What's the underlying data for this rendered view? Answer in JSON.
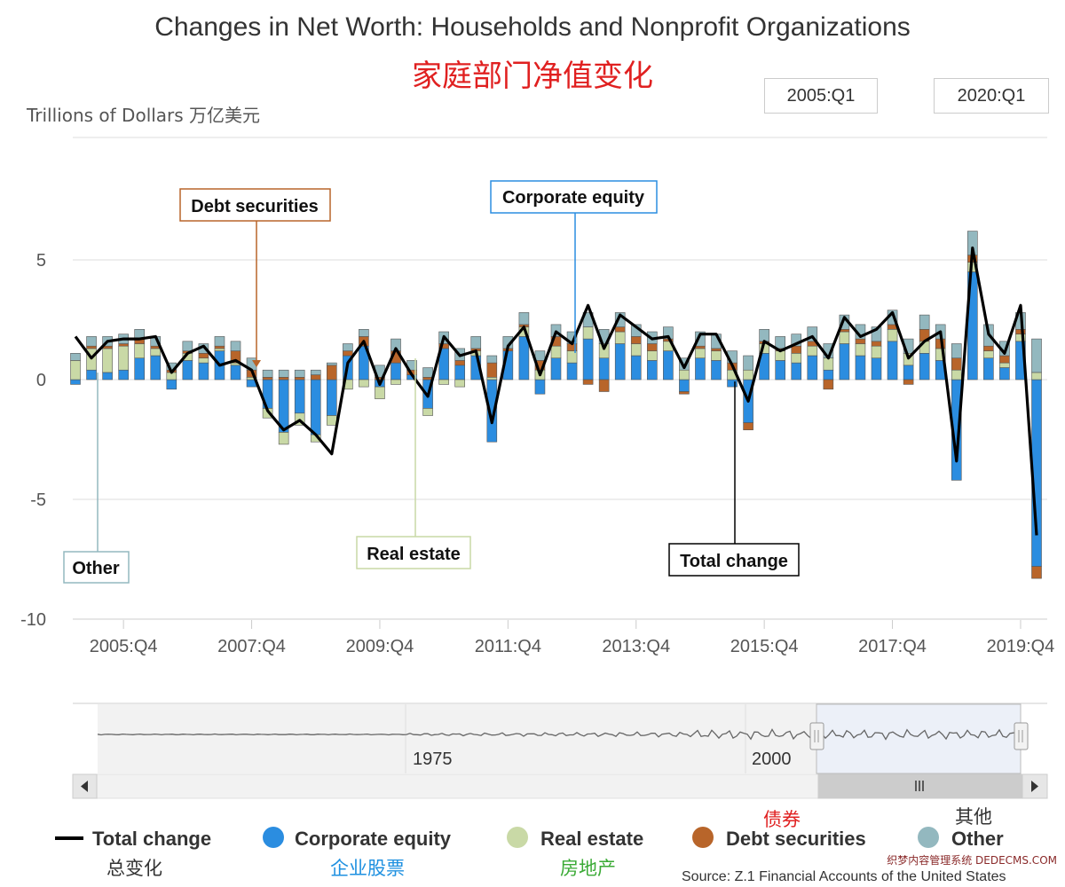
{
  "title": "Changes in Net Worth: Households and Nonprofit Organizations",
  "subtitle_cn": "家庭部门净值变化",
  "y_unit": "Trillions of Dollars 万亿美元",
  "range": {
    "start": "2005:Q1",
    "end": "2020:Q1"
  },
  "navigator": {
    "labels": [
      "1975",
      "2000"
    ]
  },
  "source": "Source: Z.1 Financial Accounts of the United States",
  "watermark": "织梦内容管理系统 DEDECMS.COM",
  "callouts": {
    "debt": "Debt securities",
    "equity": "Corporate equity",
    "other": "Other",
    "realestate": "Real estate",
    "total": "Total change"
  },
  "legend": [
    {
      "key": "total",
      "label": "Total change",
      "cn": "总变化",
      "cn_color": "#333333"
    },
    {
      "key": "equity",
      "label": "Corporate equity",
      "cn": "企业股票",
      "cn_color": "#1e90e0"
    },
    {
      "key": "realestate",
      "label": "Real estate",
      "cn": "房地产",
      "cn_color": "#3aaa35"
    },
    {
      "key": "debt",
      "label": "Debt securities",
      "cn": "债券",
      "cn_color": "#e02020"
    },
    {
      "key": "other",
      "label": "Other",
      "cn": "其他",
      "cn_color": "#333333"
    }
  ],
  "colors": {
    "equity": "#2b8de0",
    "realestate": "#c9d9a6",
    "debt": "#b8652a",
    "other": "#93b8bf",
    "total": "#000000",
    "grid": "#dddddd"
  },
  "chart_data": {
    "type": "bar",
    "stacked": true,
    "title": "Changes in Net Worth: Households and Nonprofit Organizations",
    "ylabel": "Trillions of Dollars",
    "ylim": [
      -10,
      10
    ],
    "yticks": [
      5,
      0,
      -5,
      -10
    ],
    "xticks": [
      "2005:Q4",
      "2007:Q4",
      "2009:Q4",
      "2011:Q4",
      "2013:Q4",
      "2015:Q4",
      "2017:Q4",
      "2019:Q4"
    ],
    "x_start": "2005:Q1",
    "x_end": "2020:Q1",
    "grid": true,
    "legend_position": "bottom",
    "categories": [
      "2005:Q1",
      "2005:Q2",
      "2005:Q3",
      "2005:Q4",
      "2006:Q1",
      "2006:Q2",
      "2006:Q3",
      "2006:Q4",
      "2007:Q1",
      "2007:Q2",
      "2007:Q3",
      "2007:Q4",
      "2008:Q1",
      "2008:Q2",
      "2008:Q3",
      "2008:Q4",
      "2009:Q1",
      "2009:Q2",
      "2009:Q3",
      "2009:Q4",
      "2010:Q1",
      "2010:Q2",
      "2010:Q3",
      "2010:Q4",
      "2011:Q1",
      "2011:Q2",
      "2011:Q3",
      "2011:Q4",
      "2012:Q1",
      "2012:Q2",
      "2012:Q3",
      "2012:Q4",
      "2013:Q1",
      "2013:Q2",
      "2013:Q3",
      "2013:Q4",
      "2014:Q1",
      "2014:Q2",
      "2014:Q3",
      "2014:Q4",
      "2015:Q1",
      "2015:Q2",
      "2015:Q3",
      "2015:Q4",
      "2016:Q1",
      "2016:Q2",
      "2016:Q3",
      "2016:Q4",
      "2017:Q1",
      "2017:Q2",
      "2017:Q3",
      "2017:Q4",
      "2018:Q1",
      "2018:Q2",
      "2018:Q3",
      "2018:Q4",
      "2019:Q1",
      "2019:Q2",
      "2019:Q3",
      "2019:Q4",
      "2020:Q1"
    ],
    "series": [
      {
        "name": "Corporate equity",
        "key": "equity",
        "values": [
          -0.2,
          0.4,
          0.3,
          0.4,
          0.9,
          1.0,
          -0.4,
          0.8,
          0.7,
          1.2,
          0.6,
          -0.3,
          -1.2,
          -2.2,
          -1.4,
          -2.3,
          -1.5,
          1.0,
          1.4,
          -0.3,
          0.7,
          0.2,
          -1.2,
          1.3,
          0.6,
          1.0,
          -2.6,
          1.2,
          1.8,
          -0.6,
          0.9,
          0.7,
          1.7,
          0.9,
          1.5,
          1.0,
          0.8,
          1.2,
          -0.5,
          0.9,
          0.8,
          -0.3,
          -1.8,
          1.1,
          0.8,
          0.7,
          1.0,
          0.4,
          1.5,
          1.0,
          0.9,
          1.6,
          0.6,
          1.1,
          0.8,
          -4.2,
          4.5,
          0.9,
          0.5,
          1.6,
          -7.8
        ]
      },
      {
        "name": "Real estate",
        "key": "realestate",
        "values": [
          0.8,
          0.9,
          1.0,
          1.0,
          0.6,
          0.3,
          0.3,
          0.3,
          0.2,
          0.1,
          0.1,
          0.1,
          -0.4,
          -0.5,
          -0.5,
          -0.3,
          -0.4,
          -0.4,
          -0.3,
          -0.5,
          -0.2,
          0.0,
          -0.3,
          -0.2,
          -0.3,
          0.2,
          0.1,
          0.0,
          0.4,
          0.4,
          0.5,
          0.5,
          0.5,
          0.6,
          0.5,
          0.5,
          0.4,
          0.4,
          0.4,
          0.4,
          0.4,
          0.4,
          0.4,
          0.4,
          0.4,
          0.4,
          0.4,
          0.5,
          0.5,
          0.5,
          0.5,
          0.5,
          0.5,
          0.5,
          0.5,
          0.4,
          0.4,
          0.3,
          0.2,
          0.3,
          0.3
        ]
      },
      {
        "name": "Debt securities",
        "key": "debt",
        "values": [
          0.0,
          0.1,
          0.1,
          0.1,
          0.2,
          0.1,
          0.1,
          0.1,
          0.2,
          0.1,
          0.5,
          0.3,
          0.1,
          0.1,
          0.1,
          0.2,
          0.6,
          0.2,
          0.4,
          0.1,
          0.5,
          0.2,
          0.1,
          0.2,
          0.2,
          0.1,
          0.6,
          0.1,
          0.1,
          0.4,
          0.4,
          0.3,
          -0.2,
          -0.5,
          0.2,
          0.3,
          0.3,
          0.1,
          -0.1,
          0.1,
          0.1,
          0.3,
          -0.3,
          0.1,
          0.1,
          0.3,
          0.2,
          -0.4,
          0.1,
          0.2,
          0.2,
          0.2,
          -0.2,
          0.5,
          0.4,
          0.5,
          0.3,
          0.2,
          0.3,
          0.2,
          -0.5
        ]
      },
      {
        "name": "Other",
        "key": "other",
        "values": [
          0.3,
          0.4,
          0.4,
          0.4,
          0.4,
          0.4,
          0.3,
          0.4,
          0.4,
          0.4,
          0.4,
          0.5,
          0.3,
          0.3,
          0.3,
          0.2,
          0.1,
          0.3,
          0.3,
          0.5,
          0.5,
          0.4,
          0.4,
          0.5,
          0.5,
          0.5,
          0.3,
          0.5,
          0.5,
          0.4,
          0.5,
          0.5,
          0.6,
          0.6,
          0.6,
          0.5,
          0.5,
          0.5,
          0.5,
          0.6,
          0.6,
          0.5,
          0.6,
          0.5,
          0.5,
          0.5,
          0.6,
          0.6,
          0.6,
          0.6,
          0.6,
          0.6,
          0.6,
          0.6,
          0.6,
          0.6,
          1.0,
          0.9,
          0.6,
          0.7,
          1.4
        ]
      },
      {
        "name": "Total change",
        "key": "total",
        "type": "line",
        "values": [
          1.8,
          0.9,
          1.6,
          1.7,
          1.7,
          1.8,
          0.3,
          1.1,
          1.4,
          0.6,
          0.8,
          0.4,
          -1.3,
          -2.1,
          -1.7,
          -2.3,
          -3.1,
          0.7,
          1.6,
          -0.2,
          1.3,
          0.2,
          -0.7,
          1.8,
          1.0,
          1.2,
          -1.8,
          1.4,
          2.2,
          0.2,
          2.0,
          1.5,
          3.1,
          1.3,
          2.7,
          2.2,
          1.7,
          1.8,
          0.5,
          1.9,
          1.9,
          0.6,
          -0.9,
          1.6,
          1.2,
          1.5,
          1.8,
          0.9,
          2.6,
          1.8,
          2.1,
          2.8,
          0.9,
          1.6,
          2.0,
          -3.4,
          5.5,
          1.9,
          1.1,
          3.1,
          -6.5
        ]
      }
    ]
  }
}
